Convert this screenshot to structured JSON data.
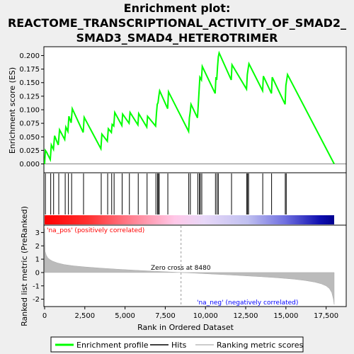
{
  "chart_data": {
    "type": "line",
    "title": [
      "Enrichment plot:",
      "REACTOME_TRANSCRIPTIONAL_ACTIVITY_OF_SMAD2_",
      "SMAD3_SMAD4_HETEROTRIMER"
    ],
    "top_panel": {
      "ylabel": "Enrichment score (ES)",
      "ylim": [
        -0.015,
        0.215
      ],
      "y_ticks": [
        0.0,
        0.025,
        0.05,
        0.075,
        0.1,
        0.125,
        0.15,
        0.175,
        0.2
      ],
      "y_tick_labels": [
        "0.000",
        "0.025",
        "0.050",
        "0.075",
        "0.100",
        "0.125",
        "0.150",
        "0.175",
        "0.200"
      ],
      "series": [
        {
          "name": "Enrichment profile",
          "color": "#00ff00",
          "x": [
            0,
            50,
            120,
            350,
            420,
            550,
            620,
            850,
            930,
            1250,
            1320,
            1450,
            1510,
            1650,
            1720,
            2400,
            2460,
            3500,
            3560,
            3900,
            3960,
            4150,
            4200,
            4300,
            4360,
            4800,
            4850,
            5250,
            5310,
            5800,
            5850,
            6350,
            6400,
            6900,
            6950,
            7000,
            7050,
            7100,
            7150,
            7650,
            7700,
            8950,
            9000,
            9050,
            9100,
            9500,
            9550,
            9600,
            9650,
            9750,
            9800,
            10600,
            10650,
            10700,
            10750,
            10800,
            10850,
            11600,
            11650,
            12550,
            12600,
            12650,
            12700,
            13550,
            13600,
            14100,
            14150,
            14950,
            15000,
            15050,
            15100,
            18000
          ],
          "y": [
            0.0,
            0.025,
            0.022,
            0.008,
            0.035,
            0.027,
            0.052,
            0.035,
            0.063,
            0.045,
            0.068,
            0.06,
            0.088,
            0.076,
            0.102,
            0.058,
            0.086,
            0.028,
            0.055,
            0.042,
            0.065,
            0.058,
            0.073,
            0.07,
            0.095,
            0.071,
            0.092,
            0.075,
            0.095,
            0.072,
            0.093,
            0.068,
            0.088,
            0.07,
            0.092,
            0.11,
            0.113,
            0.125,
            0.135,
            0.102,
            0.133,
            0.06,
            0.085,
            0.095,
            0.11,
            0.085,
            0.108,
            0.133,
            0.16,
            0.155,
            0.18,
            0.13,
            0.16,
            0.155,
            0.18,
            0.198,
            0.205,
            0.155,
            0.183,
            0.138,
            0.165,
            0.175,
            0.185,
            0.135,
            0.162,
            0.13,
            0.16,
            0.11,
            0.145,
            0.155,
            0.165,
            0.0
          ]
        }
      ]
    },
    "hits_panel": {
      "name": "Hits",
      "hit_ranks": [
        50,
        380,
        560,
        880,
        1280,
        1480,
        1680,
        2420,
        3520,
        3920,
        4170,
        4320,
        4820,
        5270,
        5820,
        6370,
        6920,
        7020,
        7080,
        7120,
        7660,
        8960,
        9060,
        9520,
        9620,
        9680,
        9770,
        10620,
        10720,
        10800,
        11620,
        12570,
        12620,
        12680,
        13560,
        14110,
        14960,
        15020
      ]
    },
    "bottom_panel": {
      "ylabel": "Ranked list metric (PreRanked)",
      "xlabel": "Rank in Ordered Dataset",
      "ylim": [
        -2.5,
        3.5
      ],
      "y_ticks": [
        -2,
        -1,
        0,
        1,
        2,
        3
      ],
      "y_tick_labels": [
        "-2",
        "-1",
        "0",
        "1",
        "2",
        "3"
      ],
      "series_name": "Ranking metric scores",
      "metric_x": [
        0,
        30,
        100,
        200,
        350,
        500,
        800,
        1200,
        1800,
        2500,
        3500,
        4500,
        5500,
        6500,
        7500,
        8480,
        9500,
        10500,
        11500,
        12500,
        13500,
        14500,
        15500,
        16200,
        16800,
        17200,
        17500,
        17700,
        17850,
        17950,
        18000
      ],
      "metric_y": [
        3.3,
        1.6,
        1.3,
        1.1,
        0.95,
        0.85,
        0.72,
        0.6,
        0.5,
        0.42,
        0.33,
        0.25,
        0.18,
        0.12,
        0.06,
        0.0,
        -0.06,
        -0.12,
        -0.18,
        -0.25,
        -0.32,
        -0.4,
        -0.5,
        -0.6,
        -0.72,
        -0.85,
        -1.0,
        -1.2,
        -1.5,
        -2.0,
        -2.4
      ],
      "zero_cross_rank": 8480,
      "zero_cross_label": "Zero cross at 8480",
      "pos_label": "'na_pos' (positively correlated)",
      "neg_label": "'na_neg' (negatively correlated)"
    },
    "x_axis": {
      "xlim": [
        0,
        18000
      ],
      "ticks": [
        0,
        2500,
        5000,
        7500,
        10000,
        12500,
        15000,
        17500
      ],
      "tick_labels": [
        "0",
        "2,500",
        "5,000",
        "7,500",
        "10,000",
        "12,500",
        "15,000",
        "17,500"
      ]
    },
    "legend": {
      "placement": "bottom",
      "entries": [
        {
          "label": "Enrichment profile",
          "color": "#00ff00"
        },
        {
          "label": "Hits",
          "color": "#000000"
        },
        {
          "label": "Ranking metric scores",
          "color": "#bbbbbb"
        }
      ]
    },
    "colors": {
      "profile": "#00ff00",
      "pos_text": "#ff0000",
      "neg_text": "#0000ff",
      "metric_fill": "#bbbbbb",
      "gradient": [
        "#ff0000",
        "#ff8080",
        "#ffc0e0",
        "#d0c8f8",
        "#8080f0",
        "#2020c0",
        "#0000a0"
      ]
    }
  }
}
